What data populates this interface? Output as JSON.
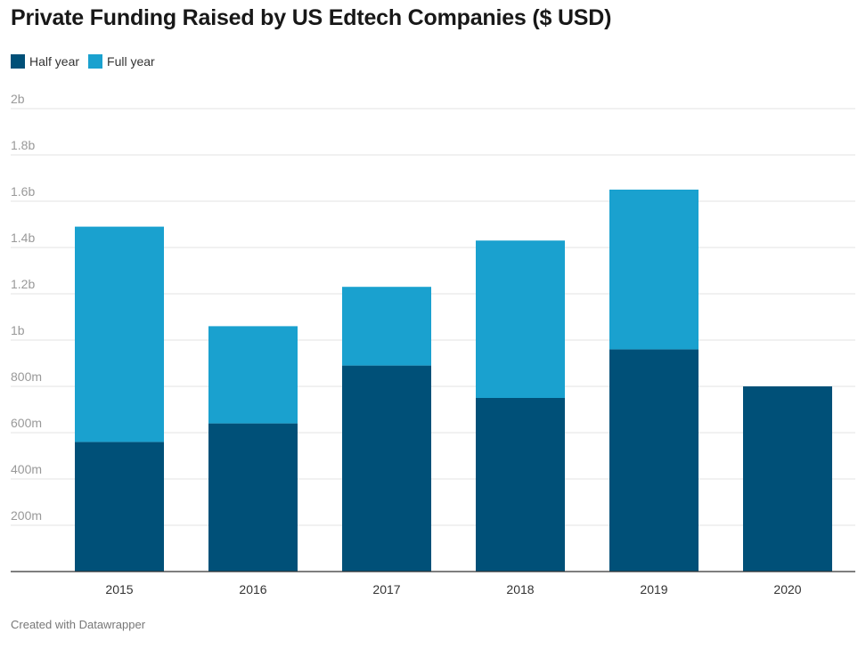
{
  "chart_data": {
    "type": "bar",
    "stacked": true,
    "title": "Private Funding Raised by US Edtech Companies ($ USD)",
    "categories": [
      "2015",
      "2016",
      "2017",
      "2018",
      "2019",
      "2020"
    ],
    "series": [
      {
        "name": "Half year",
        "color": "#005078",
        "values": [
          0.56,
          0.64,
          0.89,
          0.75,
          0.96,
          0.8
        ]
      },
      {
        "name": "Full year",
        "color": "#1aa1cf",
        "values": [
          0.93,
          0.42,
          0.34,
          0.68,
          0.69,
          null
        ]
      }
    ],
    "ylim": [
      0,
      2
    ],
    "yticks": [
      {
        "value": 0.2,
        "label": "200m"
      },
      {
        "value": 0.4,
        "label": "400m"
      },
      {
        "value": 0.6,
        "label": "600m"
      },
      {
        "value": 0.8,
        "label": "800m"
      },
      {
        "value": 1.0,
        "label": "1b"
      },
      {
        "value": 1.2,
        "label": "1.2b"
      },
      {
        "value": 1.4,
        "label": "1.4b"
      },
      {
        "value": 1.6,
        "label": "1.6b"
      },
      {
        "value": 1.8,
        "label": "1.8b"
      },
      {
        "value": 2.0,
        "label": "2b"
      }
    ],
    "grid": true,
    "legend_position": "top-left"
  },
  "footer": "Created with Datawrapper"
}
